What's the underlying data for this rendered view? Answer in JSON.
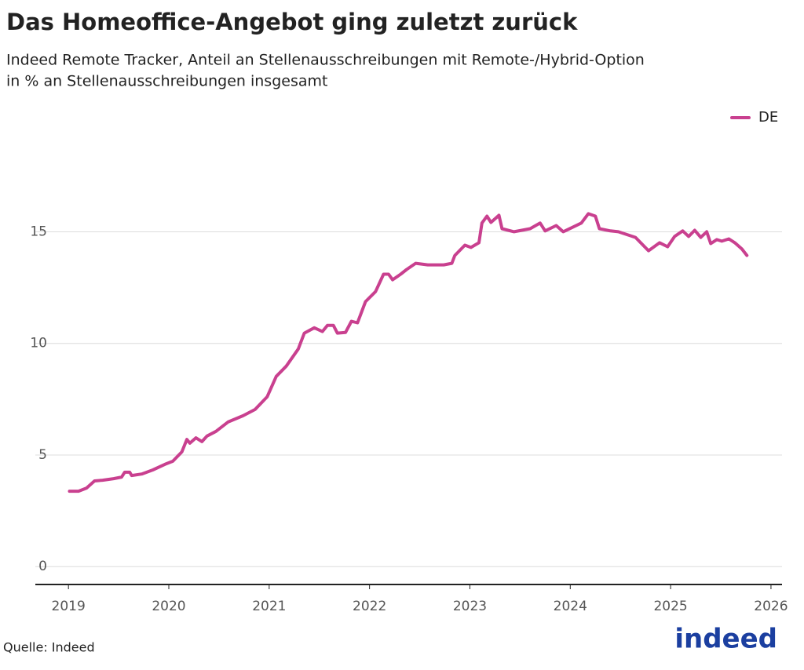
{
  "chart_data": {
    "type": "line",
    "title": "Das Homeoffice-Angebot ging zuletzt zurück",
    "subtitle": [
      "Indeed Remote Tracker, Anteil an Stellenausschreibungen mit Remote-/Hybrid-Option",
      "in % an Stellenausschreibungen insgesamt"
    ],
    "source": "Quelle: Indeed",
    "logo": "indeed",
    "legend": "top-right",
    "grid": true,
    "xlim": [
      2018.67,
      2026.11
    ],
    "xticks": [
      2019,
      2020,
      2021,
      2022,
      2023,
      2024,
      2025,
      2026
    ],
    "ylim": [
      -0.8,
      17.3
    ],
    "yticks": [
      0,
      5,
      10,
      15
    ],
    "x": [
      2019.01,
      2019.1,
      2019.18,
      2019.26,
      2019.34,
      2019.45,
      2019.53,
      2019.56,
      2019.61,
      2019.63,
      2019.73,
      2019.84,
      2019.96,
      2020.04,
      2020.13,
      2020.18,
      2020.21,
      2020.27,
      2020.33,
      2020.38,
      2020.47,
      2020.59,
      2020.74,
      2020.86,
      2020.98,
      2021.07,
      2021.17,
      2021.29,
      2021.35,
      2021.45,
      2021.53,
      2021.58,
      2021.64,
      2021.68,
      2021.76,
      2021.82,
      2021.88,
      2021.96,
      2022.06,
      2022.14,
      2022.19,
      2022.23,
      2022.31,
      2022.37,
      2022.46,
      2022.58,
      2022.74,
      2022.82,
      2022.85,
      2022.95,
      2023.01,
      2023.09,
      2023.12,
      2023.17,
      2023.21,
      2023.29,
      2023.32,
      2023.44,
      2023.6,
      2023.7,
      2023.75,
      2023.86,
      2023.93,
      2024.11,
      2024.18,
      2024.25,
      2024.29,
      2024.4,
      2024.48,
      2024.65,
      2024.78,
      2024.89,
      2024.97,
      2025.04,
      2025.12,
      2025.18,
      2025.24,
      2025.3,
      2025.36,
      2025.4,
      2025.46,
      2025.51,
      2025.58,
      2025.64,
      2025.71,
      2025.76
    ],
    "series": [
      {
        "name": "DE",
        "color": "#c9408f",
        "values": [
          3.38,
          3.38,
          3.52,
          3.84,
          3.87,
          3.94,
          4.01,
          4.23,
          4.23,
          4.08,
          4.15,
          4.33,
          4.58,
          4.72,
          5.14,
          5.7,
          5.53,
          5.77,
          5.6,
          5.85,
          6.06,
          6.48,
          6.76,
          7.04,
          7.61,
          8.52,
          8.98,
          9.75,
          10.46,
          10.7,
          10.53,
          10.81,
          10.81,
          10.46,
          10.49,
          10.99,
          10.92,
          11.87,
          12.32,
          13.1,
          13.1,
          12.85,
          13.1,
          13.31,
          13.59,
          13.52,
          13.52,
          13.59,
          13.94,
          14.4,
          14.3,
          14.51,
          15.39,
          15.7,
          15.42,
          15.74,
          15.14,
          15.0,
          15.14,
          15.39,
          15.04,
          15.28,
          15.0,
          15.39,
          15.81,
          15.7,
          15.14,
          15.04,
          15.0,
          14.75,
          14.15,
          14.51,
          14.33,
          14.79,
          15.04,
          14.79,
          15.07,
          14.75,
          15.0,
          14.47,
          14.65,
          14.58,
          14.68,
          14.51,
          14.23,
          13.94
        ]
      }
    ]
  }
}
